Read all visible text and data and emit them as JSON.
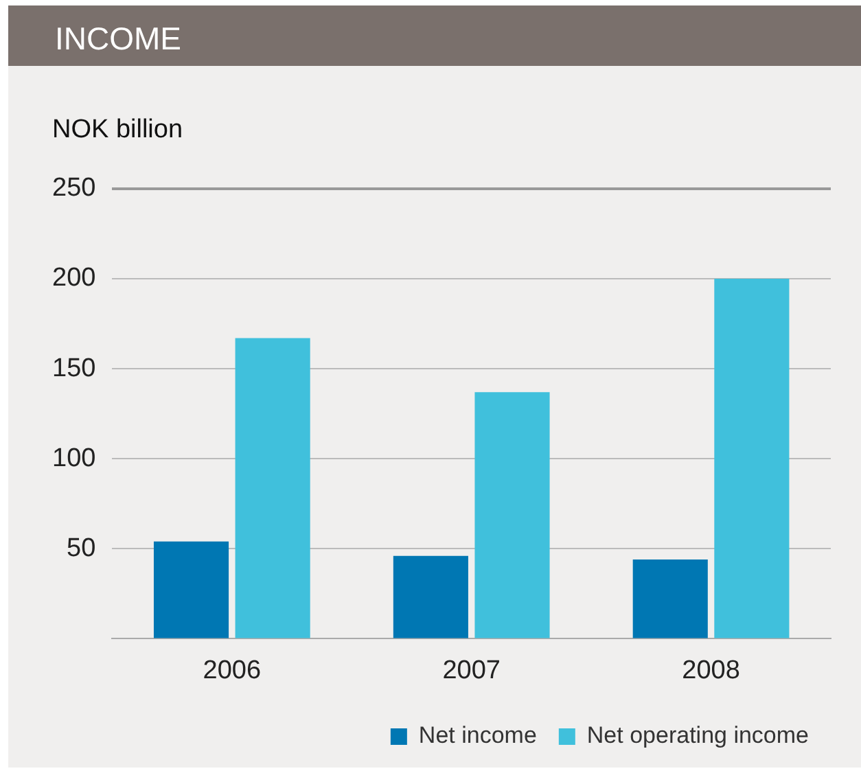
{
  "chart_data": {
    "type": "bar",
    "title": "INCOME",
    "ylabel": "NOK billion",
    "categories": [
      "2006",
      "2007",
      "2008"
    ],
    "series": [
      {
        "name": "Net income",
        "color": "#0077b3",
        "values": [
          54,
          46,
          44
        ]
      },
      {
        "name": "Net operating income",
        "color": "#40c0dc",
        "values": [
          167,
          137,
          200
        ]
      }
    ],
    "ylim": [
      0,
      250
    ],
    "yticks": [
      {
        "value": 0,
        "label": null
      },
      50,
      100,
      150,
      200,
      250
    ],
    "grid": "y",
    "legend": "bottom right"
  }
}
